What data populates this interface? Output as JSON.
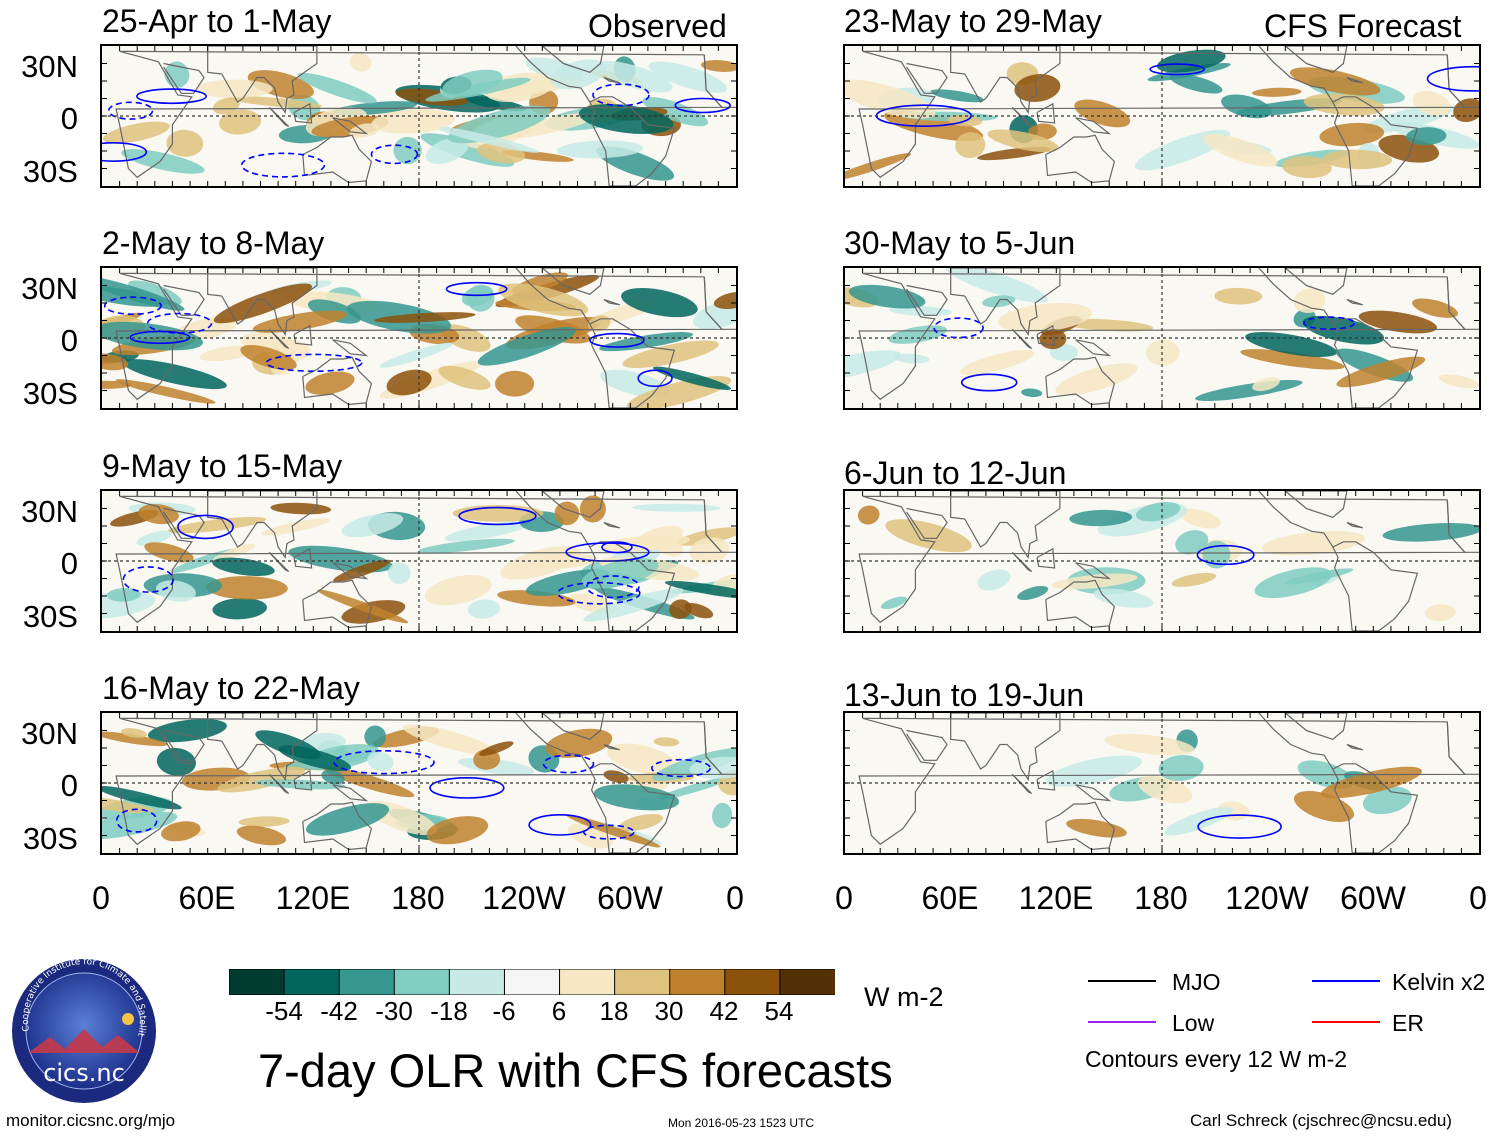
{
  "column_labels": {
    "left": "Observed",
    "right": "CFS Forecast"
  },
  "panels": [
    {
      "title": "25-Apr to 1-May",
      "column": "observed"
    },
    {
      "title": "2-May to 8-May",
      "column": "observed"
    },
    {
      "title": "9-May to 15-May",
      "column": "observed"
    },
    {
      "title": "16-May to 22-May",
      "column": "observed"
    },
    {
      "title": "23-May to 29-May",
      "column": "forecast"
    },
    {
      "title": "30-May to 5-Jun",
      "column": "forecast"
    },
    {
      "title": "6-Jun to 12-Jun",
      "column": "forecast"
    },
    {
      "title": "13-Jun to 19-Jun",
      "column": "forecast"
    }
  ],
  "latitude_labels": [
    "30N",
    "0",
    "30S"
  ],
  "longitude_labels": [
    "0",
    "60E",
    "120E",
    "180",
    "120W",
    "60W",
    "0"
  ],
  "colorbar": {
    "units": "W m-2",
    "tick_labels": [
      "-54",
      "-42",
      "-30",
      "-18",
      "-6",
      "6",
      "18",
      "30",
      "42",
      "54"
    ],
    "colors": [
      "#003c30",
      "#01665e",
      "#35978f",
      "#80cdc1",
      "#c7eae5",
      "#f5f5f5",
      "#f6e8c3",
      "#dfc27d",
      "#bf812d",
      "#8c510a",
      "#543005"
    ]
  },
  "legend": {
    "items": [
      {
        "label": "MJO",
        "color": "#000000"
      },
      {
        "label": "Kelvin x2",
        "color": "#0000ff"
      },
      {
        "label": "Low",
        "color": "#a020f0"
      },
      {
        "label": "ER",
        "color": "#ff0000"
      }
    ],
    "note": "Contours every 12 W m-2"
  },
  "logo": {
    "text": "cics.nc",
    "ring_text": "Cooperative Institute for Climate and Satellites"
  },
  "main_title": "7-day OLR with CFS forecasts",
  "footer": {
    "left": "monitor.cicsnc.org/mjo",
    "center": "Mon 2016-05-23 1523 UTC",
    "right": "Carl Schreck (cjschrec@ncsu.edu)"
  }
}
